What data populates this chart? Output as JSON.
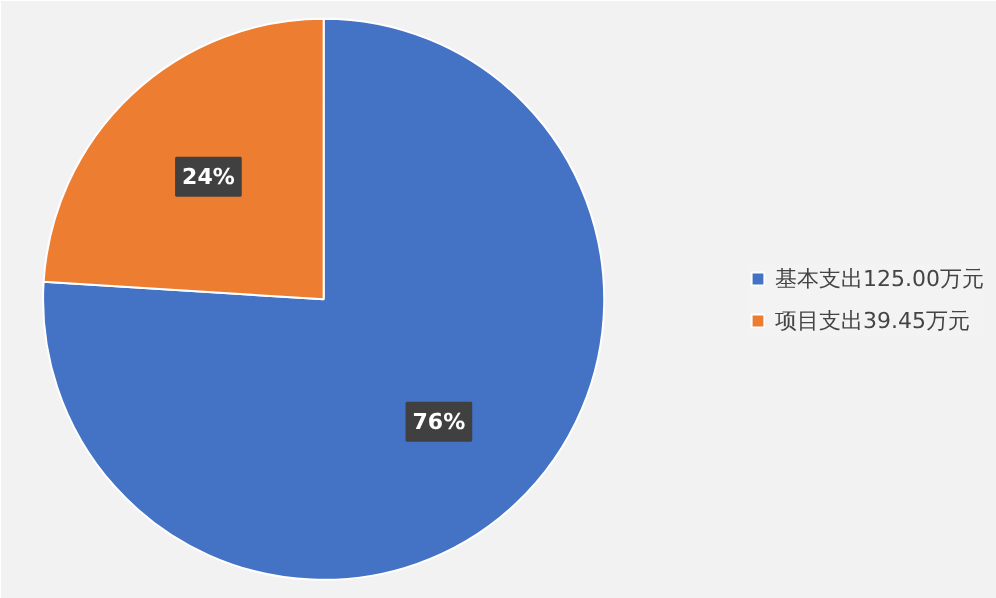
{
  "chart_data": {
    "type": "pie",
    "categories": [
      "基本支出125.00万元",
      "项目支出39.45万元"
    ],
    "values": [
      76,
      24
    ],
    "colors": [
      "#4472c4",
      "#ed7d31"
    ],
    "value_labels": [
      "76%",
      "24%"
    ],
    "legend": "right"
  }
}
